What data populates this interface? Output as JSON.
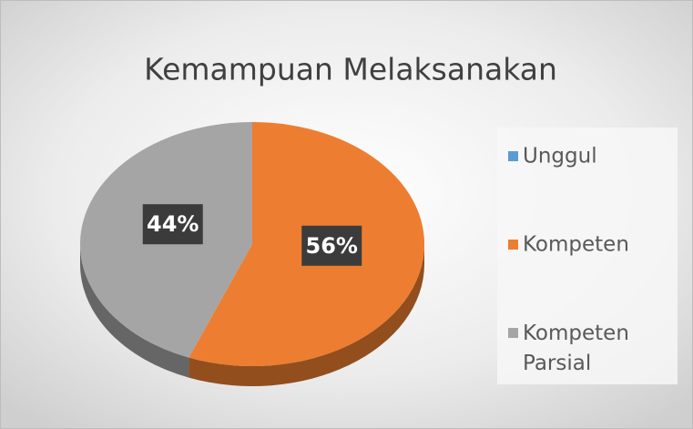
{
  "chart_data": {
    "type": "pie",
    "title": "Kemampuan Melaksanakan",
    "categories": [
      "Unggul",
      "Kompeten",
      "Kompeten Parsial"
    ],
    "values": [
      0,
      56,
      44
    ],
    "value_labels": [
      null,
      "56%",
      "44%"
    ],
    "colors": [
      "#5b9bd5",
      "#ed7d31",
      "#a5a5a5"
    ],
    "legend": "right"
  }
}
